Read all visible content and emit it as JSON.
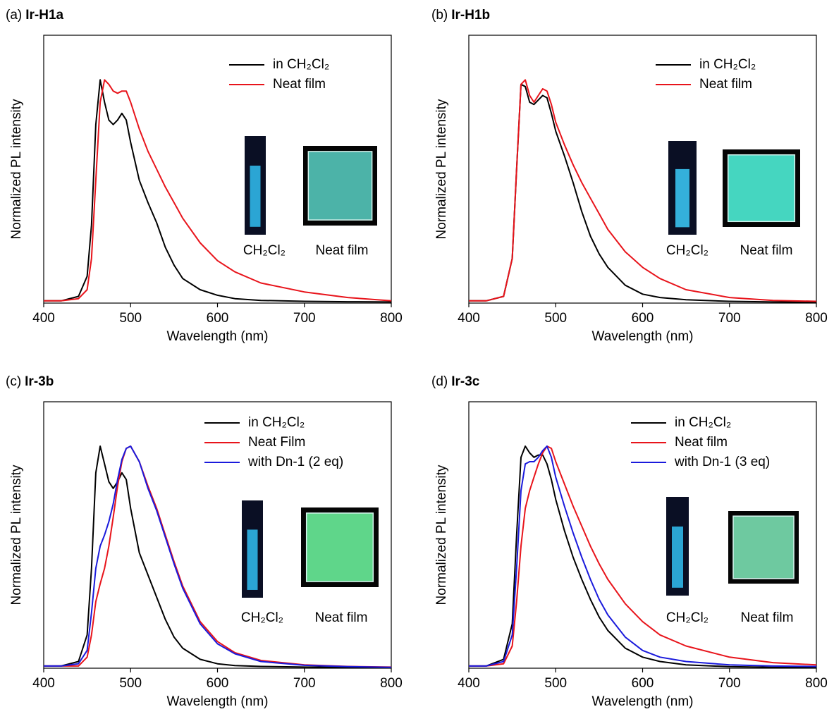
{
  "chart_data": [
    {
      "type": "line",
      "label": "(a)",
      "title": "Ir-H1a",
      "xlabel": "Wavelength (nm)",
      "ylabel": "Normalized PL intensity",
      "xlim": [
        400,
        800
      ],
      "xticks": [
        400,
        500,
        600,
        700,
        800
      ],
      "ylim": [
        0,
        1.2
      ],
      "photo_labels": [
        "CH₂Cl₂",
        "Neat film"
      ],
      "x": [
        400,
        420,
        440,
        450,
        455,
        460,
        465,
        470,
        475,
        480,
        485,
        490,
        495,
        500,
        510,
        520,
        530,
        540,
        550,
        560,
        580,
        600,
        620,
        650,
        700,
        750,
        800
      ],
      "series": [
        {
          "name": "in CH₂Cl₂",
          "color": "#000000",
          "values": [
            0.01,
            0.01,
            0.03,
            0.12,
            0.35,
            0.8,
            1.0,
            0.9,
            0.82,
            0.8,
            0.82,
            0.85,
            0.82,
            0.72,
            0.55,
            0.45,
            0.36,
            0.25,
            0.17,
            0.11,
            0.06,
            0.035,
            0.02,
            0.012,
            0.008,
            0.006,
            0.005
          ]
        },
        {
          "name": "Neat film",
          "color": "#e8141b",
          "values": [
            0.01,
            0.01,
            0.02,
            0.06,
            0.2,
            0.55,
            0.9,
            1.0,
            0.98,
            0.95,
            0.94,
            0.95,
            0.95,
            0.9,
            0.78,
            0.68,
            0.6,
            0.52,
            0.45,
            0.38,
            0.27,
            0.19,
            0.14,
            0.09,
            0.05,
            0.025,
            0.01
          ]
        }
      ]
    },
    {
      "type": "line",
      "label": "(b)",
      "title": "Ir-H1b",
      "xlabel": "Wavelength (nm)",
      "ylabel": "Normalized PL intensity",
      "xlim": [
        400,
        800
      ],
      "xticks": [
        400,
        500,
        600,
        700,
        800
      ],
      "ylim": [
        0,
        1.2
      ],
      "photo_labels": [
        "CH₂Cl₂",
        "Neat film"
      ],
      "x": [
        400,
        420,
        440,
        450,
        455,
        460,
        465,
        470,
        475,
        480,
        485,
        490,
        495,
        500,
        510,
        520,
        530,
        540,
        550,
        560,
        580,
        600,
        620,
        650,
        700,
        750,
        800
      ],
      "series": [
        {
          "name": "in CH₂Cl₂",
          "color": "#000000",
          "values": [
            0.01,
            0.01,
            0.03,
            0.2,
            0.6,
            0.98,
            0.97,
            0.9,
            0.89,
            0.91,
            0.93,
            0.92,
            0.85,
            0.77,
            0.66,
            0.54,
            0.41,
            0.3,
            0.22,
            0.16,
            0.08,
            0.04,
            0.025,
            0.015,
            0.008,
            0.005,
            0.004
          ]
        },
        {
          "name": "Neat film",
          "color": "#e8141b",
          "values": [
            0.01,
            0.01,
            0.03,
            0.2,
            0.6,
            0.98,
            1.0,
            0.93,
            0.9,
            0.93,
            0.96,
            0.95,
            0.89,
            0.81,
            0.71,
            0.62,
            0.54,
            0.47,
            0.4,
            0.33,
            0.23,
            0.16,
            0.11,
            0.06,
            0.025,
            0.012,
            0.008
          ]
        }
      ]
    },
    {
      "type": "line",
      "label": "(c)",
      "title": "Ir-3b",
      "xlabel": "Wavelength (nm)",
      "ylabel": "Normalized PL intensity",
      "xlim": [
        400,
        800
      ],
      "xticks": [
        400,
        500,
        600,
        700,
        800
      ],
      "ylim": [
        0,
        1.2
      ],
      "photo_labels": [
        "CH₂Cl₂",
        "Neat film"
      ],
      "x": [
        400,
        420,
        440,
        450,
        455,
        460,
        465,
        470,
        475,
        480,
        485,
        490,
        495,
        500,
        510,
        520,
        530,
        540,
        550,
        560,
        580,
        600,
        620,
        650,
        700,
        750,
        800
      ],
      "series": [
        {
          "name": "in CH₂Cl₂",
          "color": "#000000",
          "values": [
            0.01,
            0.01,
            0.03,
            0.15,
            0.45,
            0.88,
            1.0,
            0.92,
            0.84,
            0.81,
            0.84,
            0.88,
            0.85,
            0.72,
            0.52,
            0.42,
            0.32,
            0.22,
            0.14,
            0.09,
            0.04,
            0.02,
            0.012,
            0.008,
            0.005,
            0.004,
            0.003
          ]
        },
        {
          "name": "Neat Film",
          "color": "#e8141b",
          "values": [
            0.01,
            0.01,
            0.01,
            0.05,
            0.15,
            0.3,
            0.38,
            0.45,
            0.55,
            0.68,
            0.82,
            0.93,
            0.99,
            1.0,
            0.93,
            0.82,
            0.72,
            0.6,
            0.48,
            0.37,
            0.21,
            0.12,
            0.07,
            0.035,
            0.015,
            0.008,
            0.005
          ]
        },
        {
          "name": "with Dn-1 (2 eq)",
          "color": "#1a1adc",
          "values": [
            0.01,
            0.01,
            0.02,
            0.08,
            0.25,
            0.45,
            0.55,
            0.6,
            0.66,
            0.74,
            0.85,
            0.94,
            0.99,
            1.0,
            0.93,
            0.81,
            0.71,
            0.59,
            0.47,
            0.36,
            0.2,
            0.11,
            0.065,
            0.03,
            0.013,
            0.007,
            0.004
          ]
        }
      ]
    },
    {
      "type": "line",
      "label": "(d)",
      "title": "Ir-3c",
      "xlabel": "Wavelength (nm)",
      "ylabel": "Normalized PL intensity",
      "xlim": [
        400,
        800
      ],
      "xticks": [
        400,
        500,
        600,
        700,
        800
      ],
      "ylim": [
        0,
        1.2
      ],
      "photo_labels": [
        "CH₂Cl₂",
        "Neat film"
      ],
      "x": [
        400,
        420,
        440,
        450,
        455,
        460,
        465,
        470,
        475,
        480,
        485,
        490,
        495,
        500,
        510,
        520,
        530,
        540,
        550,
        560,
        580,
        600,
        620,
        650,
        700,
        750,
        800
      ],
      "series": [
        {
          "name": "in CH₂Cl₂",
          "color": "#000000",
          "values": [
            0.01,
            0.01,
            0.04,
            0.2,
            0.6,
            0.95,
            1.0,
            0.97,
            0.95,
            0.96,
            0.96,
            0.92,
            0.85,
            0.76,
            0.62,
            0.5,
            0.4,
            0.31,
            0.23,
            0.17,
            0.09,
            0.05,
            0.03,
            0.015,
            0.007,
            0.004,
            0.003
          ]
        },
        {
          "name": "Neat film",
          "color": "#e8141b",
          "values": [
            0.01,
            0.01,
            0.02,
            0.1,
            0.3,
            0.55,
            0.72,
            0.8,
            0.86,
            0.92,
            0.97,
            1.0,
            0.99,
            0.93,
            0.83,
            0.73,
            0.64,
            0.55,
            0.47,
            0.4,
            0.29,
            0.21,
            0.15,
            0.1,
            0.05,
            0.025,
            0.015
          ]
        },
        {
          "name": "with Dn-1 (3 eq)",
          "color": "#1a1adc",
          "values": [
            0.01,
            0.01,
            0.03,
            0.15,
            0.45,
            0.8,
            0.92,
            0.93,
            0.93,
            0.95,
            0.98,
            1.0,
            0.95,
            0.86,
            0.73,
            0.61,
            0.5,
            0.4,
            0.31,
            0.24,
            0.14,
            0.08,
            0.05,
            0.03,
            0.015,
            0.01,
            0.008
          ]
        }
      ]
    }
  ]
}
